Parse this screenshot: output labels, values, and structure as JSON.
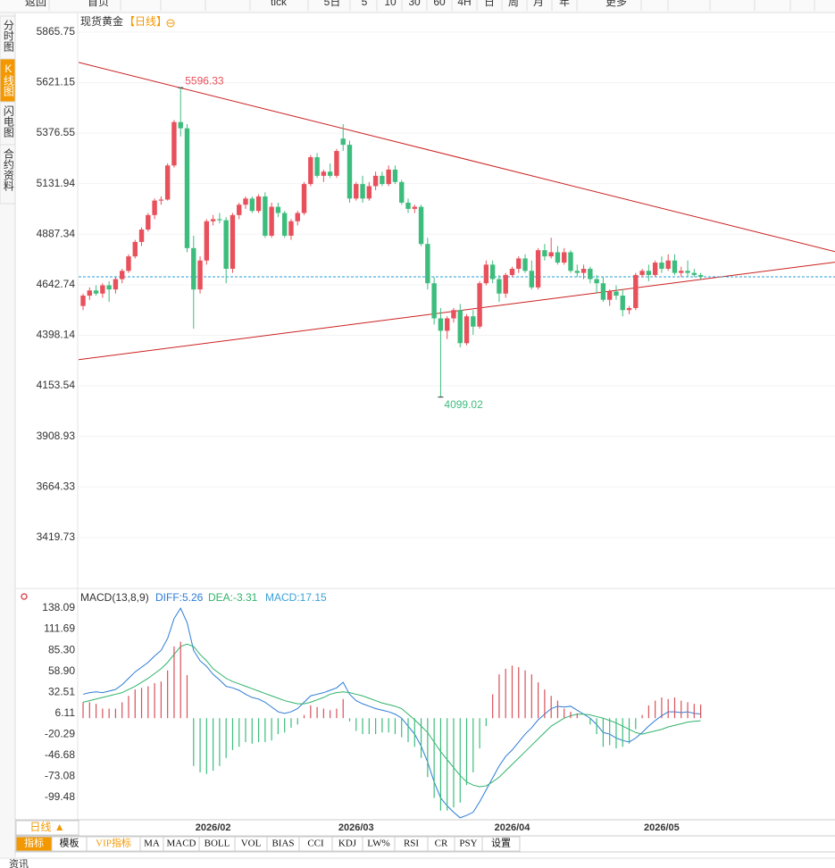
{
  "toolbar": {
    "back": "返回",
    "home": "首页",
    "items": [
      "tick",
      "5日",
      "5",
      "10",
      "30",
      "60",
      "4H",
      "日",
      "周",
      "月",
      "年"
    ],
    "more": "更多"
  },
  "sidebar": [
    "分时图",
    "K线图",
    "闪电图",
    "合约资料"
  ],
  "chart_data": [
    {
      "type": "candlestick",
      "title": "现货黄金",
      "period_label": "【日线】",
      "categories": [
        null,
        null,
        null,
        null,
        null,
        null,
        null,
        null,
        null,
        null,
        null,
        null,
        null,
        null,
        null,
        null,
        null,
        null,
        null,
        null,
        "2026/02",
        null,
        null,
        null,
        null,
        null,
        null,
        null,
        null,
        null,
        null,
        null,
        null,
        null,
        null,
        null,
        null,
        null,
        null,
        null,
        null,
        null,
        "2026/03",
        null,
        null,
        null,
        null,
        null,
        null,
        null,
        null,
        null,
        null,
        null,
        null,
        null,
        null,
        null,
        null,
        null,
        null,
        null,
        null,
        null,
        null,
        null,
        "2026/04",
        null,
        null,
        null,
        null,
        null,
        null,
        null,
        null,
        null,
        null,
        null,
        null,
        null,
        null,
        null,
        null,
        null,
        null,
        null,
        null,
        null,
        null,
        "2026/05",
        null,
        null,
        null,
        null,
        null,
        null
      ],
      "open": [
        4540,
        4590,
        4615,
        4600,
        4640,
        4620,
        4670,
        4710,
        4780,
        4850,
        4910,
        4980,
        5050,
        5055,
        5220,
        5430,
        5400,
        4820,
        4620,
        4760,
        4950,
        4960,
        4955,
        4720,
        4980,
        5030,
        5060,
        5000,
        5070,
        4880,
        5020,
        4990,
        4880,
        4950,
        4990,
        5130,
        5260,
        5170,
        5190,
        5170,
        5350,
        5320,
        5060,
        5130,
        5060,
        5120,
        5170,
        5130,
        5200,
        5140,
        5040,
        5010,
        5020,
        4840,
        4650,
        4480,
        4420,
        4480,
        4520,
        4360,
        4490,
        4440,
        4650,
        4740,
        4670,
        4600,
        4690,
        4720,
        4770,
        4710,
        4630,
        4810,
        4780,
        4800,
        4750,
        4800,
        4710,
        4700,
        4720,
        4670,
        4650,
        4570,
        4610,
        4590,
        4520,
        4530,
        4690,
        4710,
        4690,
        4750,
        4720,
        4760,
        4700,
        4710,
        4700,
        4690
      ],
      "high": [
        4600,
        4630,
        4640,
        4650,
        4660,
        4680,
        4720,
        4790,
        4860,
        4920,
        4990,
        5060,
        5070,
        5230,
        5440,
        5596.33,
        5420,
        4880,
        4780,
        4960,
        4980,
        4990,
        4970,
        4990,
        5040,
        5070,
        5070,
        5080,
        5090,
        5040,
        5040,
        5000,
        4960,
        5000,
        5140,
        5270,
        5280,
        5200,
        5230,
        5300,
        5420,
        5340,
        5140,
        5170,
        5140,
        5190,
        5190,
        5220,
        5220,
        5150,
        5060,
        5030,
        5030,
        4870,
        4680,
        4530,
        4490,
        4530,
        4550,
        4500,
        4520,
        4660,
        4760,
        4760,
        4690,
        4700,
        4730,
        4780,
        4790,
        4760,
        4820,
        4840,
        4870,
        4830,
        4820,
        4810,
        4740,
        4740,
        4730,
        4690,
        4680,
        4620,
        4640,
        4620,
        4540,
        4700,
        4720,
        4740,
        4760,
        4780,
        4790,
        4790,
        4730,
        4760,
        4720,
        4700
      ],
      "low": [
        4520,
        4570,
        4590,
        4580,
        4560,
        4600,
        4650,
        4700,
        4770,
        4830,
        4900,
        4960,
        5030,
        5050,
        5210,
        5360,
        4800,
        4430,
        4600,
        4740,
        4930,
        4940,
        4650,
        4700,
        4960,
        5010,
        4990,
        4990,
        4870,
        4870,
        4970,
        4870,
        4860,
        4930,
        4980,
        5120,
        5160,
        5140,
        5160,
        5160,
        5290,
        5040,
        5050,
        5040,
        5050,
        5100,
        5120,
        5120,
        5130,
        5030,
        4990,
        4990,
        4830,
        4620,
        4450,
        4099.02,
        4380,
        4460,
        4340,
        4350,
        4400,
        4430,
        4640,
        4650,
        4560,
        4580,
        4680,
        4700,
        4700,
        4620,
        4620,
        4760,
        4770,
        4740,
        4740,
        4700,
        4680,
        4670,
        4650,
        4600,
        4560,
        4540,
        4570,
        4490,
        4500,
        4520,
        4680,
        4660,
        4680,
        4700,
        4710,
        4690,
        4680,
        4680,
        4680,
        4670
      ],
      "close": [
        4590,
        4615,
        4600,
        4640,
        4620,
        4670,
        4710,
        4780,
        4850,
        4910,
        4980,
        5050,
        5055,
        5220,
        5430,
        5400,
        4820,
        4620,
        4760,
        4950,
        4960,
        4955,
        4720,
        4980,
        5030,
        5060,
        5000,
        5070,
        4880,
        5020,
        4990,
        4880,
        4950,
        4990,
        5130,
        5260,
        5170,
        5190,
        5170,
        5290,
        5320,
        5060,
        5130,
        5060,
        5120,
        5170,
        5130,
        5200,
        5140,
        5040,
        5010,
        5020,
        4840,
        4650,
        4480,
        4420,
        4480,
        4520,
        4360,
        4490,
        4440,
        4650,
        4740,
        4670,
        4600,
        4690,
        4720,
        4770,
        4710,
        4630,
        4810,
        4780,
        4800,
        4750,
        4800,
        4710,
        4700,
        4720,
        4670,
        4650,
        4570,
        4610,
        4590,
        4520,
        4530,
        4690,
        4710,
        4690,
        4750,
        4720,
        4760,
        4700,
        4710,
        4700,
        4690,
        4681
      ],
      "up_color": "#e8505b",
      "down_color": "#3dbd7d",
      "xlim": [
        -0.69,
        115.66
      ],
      "ylim": [
        3190,
        5943
      ],
      "yticks": [
        5865.75,
        5621.15,
        5376.55,
        5131.94,
        4887.34,
        4642.74,
        4398.14,
        4153.54,
        3908.93,
        3664.33,
        3419.73
      ],
      "grid": true,
      "current_price": 4681,
      "current_price_color": "#2a9fd6",
      "trend_lines": [
        {
          "x": [
            -0.69,
            115.66
          ],
          "y": [
            5719,
            4803
          ]
        },
        {
          "x": [
            -0.69,
            115.66
          ],
          "y": [
            4280,
            4752
          ]
        }
      ],
      "trend_color": "#cc1f1f"
    },
    {
      "type": "macd",
      "title": "MACD(13,8,9)",
      "xlim": [
        -0.69,
        115.66
      ],
      "ylim": [
        -127.5,
        161.6
      ],
      "yticks": [
        138.09,
        111.69,
        {
          "value": 85.3,
          "label": "85.30"
        },
        {
          "value": 58.9,
          "label": "58.90"
        },
        32.51,
        6.11,
        -20.29,
        -46.68,
        -73.08,
        -99.48
      ],
      "series": [
        {
          "name": "DIFF:5.26",
          "color": "#2b7bd6",
          "values": [
            30,
            32,
            33,
            32,
            34,
            36,
            42,
            50,
            58,
            64,
            70,
            78,
            85,
            100,
            125,
            138,
            120,
            85,
            72,
            65,
            55,
            48,
            40,
            38,
            35,
            30,
            26,
            24,
            20,
            14,
            8,
            6,
            8,
            12,
            20,
            28,
            30,
            32,
            35,
            38,
            45,
            30,
            22,
            18,
            15,
            12,
            10,
            8,
            5,
            0,
            -10,
            -20,
            -35,
            -55,
            -80,
            -100,
            -110,
            -118,
            -125,
            -122,
            -118,
            -105,
            -90,
            -75,
            -60,
            -48,
            -40,
            -30,
            -20,
            -12,
            -2,
            5,
            12,
            15,
            14,
            15,
            10,
            5,
            0,
            -8,
            -18,
            -20,
            -25,
            -28,
            -30,
            -25,
            -18,
            -10,
            -3,
            3,
            8,
            8,
            7,
            8,
            6,
            5.26
          ]
        },
        {
          "name": "DEA:-3.31",
          "color": "#2fb36a",
          "values": [
            20,
            22,
            24,
            26,
            28,
            30,
            32,
            36,
            40,
            45,
            50,
            56,
            62,
            70,
            80,
            90,
            93,
            90,
            80,
            72,
            62,
            56,
            50,
            46,
            43,
            40,
            37,
            34,
            31,
            28,
            25,
            22,
            20,
            18,
            18,
            20,
            23,
            26,
            30,
            32,
            33,
            32,
            30,
            28,
            25,
            22,
            19,
            17,
            15,
            12,
            5,
            -2,
            -10,
            -18,
            -30,
            -42,
            -52,
            -62,
            -72,
            -80,
            -84,
            -86,
            -85,
            -80,
            -74,
            -66,
            -58,
            -50,
            -42,
            -34,
            -26,
            -18,
            -10,
            -5,
            0,
            3,
            5,
            5,
            4,
            2,
            0,
            -3,
            -6,
            -10,
            -14,
            -18,
            -20,
            -18,
            -16,
            -14,
            -11,
            -9,
            -7,
            -5,
            -4,
            -3.31
          ]
        },
        {
          "name": "MACD:17.15",
          "color": "#d9505a",
          "negative_color": "#3dbd7d",
          "legend_color": "#3aa0d8",
          "values": [
            20,
            20,
            18,
            12,
            12,
            12,
            20,
            28,
            36,
            38,
            40,
            44,
            46,
            60,
            90,
            96,
            54,
            -60,
            -68,
            -70,
            -66,
            -60,
            -50,
            -40,
            -36,
            -30,
            -32,
            -30,
            -30,
            -28,
            -20,
            -18,
            -12,
            -8,
            4,
            16,
            14,
            12,
            10,
            12,
            24,
            -4,
            -16,
            -20,
            -20,
            -20,
            -18,
            -18,
            -20,
            -24,
            -30,
            -36,
            -50,
            -74,
            -100,
            -116,
            -116,
            -112,
            -106,
            -84,
            -68,
            -38,
            -10,
            30,
            55,
            62,
            66,
            64,
            60,
            55,
            45,
            36,
            28,
            22,
            12,
            8,
            6,
            0,
            -8,
            -20,
            -36,
            -34,
            -38,
            -36,
            -32,
            -14,
            4,
            16,
            22,
            26,
            24,
            26,
            22,
            20,
            18,
            17.15
          ]
        }
      ]
    }
  ],
  "bottom": {
    "period": "日线 ▲",
    "tabs": [
      "指标",
      "模板",
      "VIP指标",
      "MA",
      "MACD",
      "BOLL",
      "VOL",
      "BIAS",
      "CCI",
      "KDJ",
      "LW%",
      "RSI",
      "CR",
      "PSY",
      "设置"
    ]
  },
  "footer": "资讯"
}
